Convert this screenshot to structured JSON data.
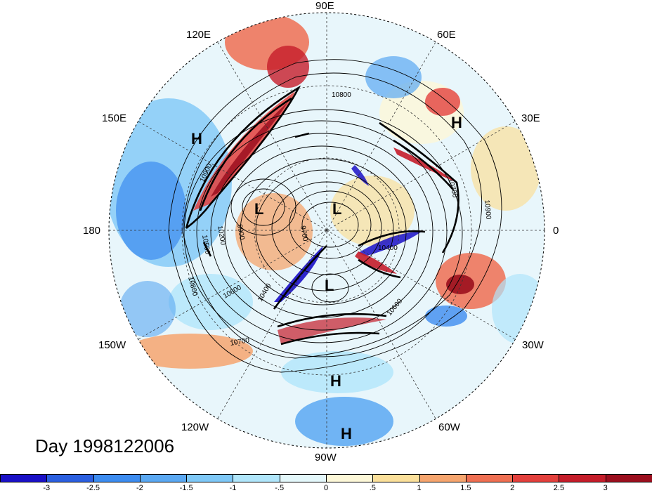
{
  "title_line": "Day 1998122006",
  "longitude_labels": {
    "e90": "90E",
    "e120": "120E",
    "e60": "60E",
    "e150": "150E",
    "e30": "30E",
    "w180": "180",
    "e0": "0",
    "w150": "150W",
    "w30": "30W",
    "w120": "120W",
    "w60": "60W",
    "w90": "90W"
  },
  "pressure_systems": [
    {
      "label": "H"
    },
    {
      "label": "H"
    },
    {
      "label": "L"
    },
    {
      "label": "L"
    },
    {
      "label": "L"
    },
    {
      "label": "H"
    },
    {
      "label": "H"
    }
  ],
  "contour_labels": [
    "10800",
    "10900",
    "10600",
    "10500",
    "10200",
    "9900",
    "9700",
    "10400",
    "10400",
    "10700",
    "10600",
    "10700",
    "10900",
    "10800"
  ],
  "colorbar": {
    "ticks": [
      "-3",
      "-2.5",
      "-2",
      "-1.5",
      "-1",
      "-.5",
      "0",
      ".5",
      "1",
      "1.5",
      "2",
      "2.5",
      "3"
    ],
    "colors": [
      "#1a10c6",
      "#2b5fe0",
      "#3c8cf0",
      "#5aa8f2",
      "#7ec8f7",
      "#b0e6fb",
      "#e4f8fb",
      "#fdf8d8",
      "#fbe09a",
      "#f6a56e",
      "#ef6f52",
      "#e3403c",
      "#c51d2a",
      "#9b0f1e"
    ]
  }
}
